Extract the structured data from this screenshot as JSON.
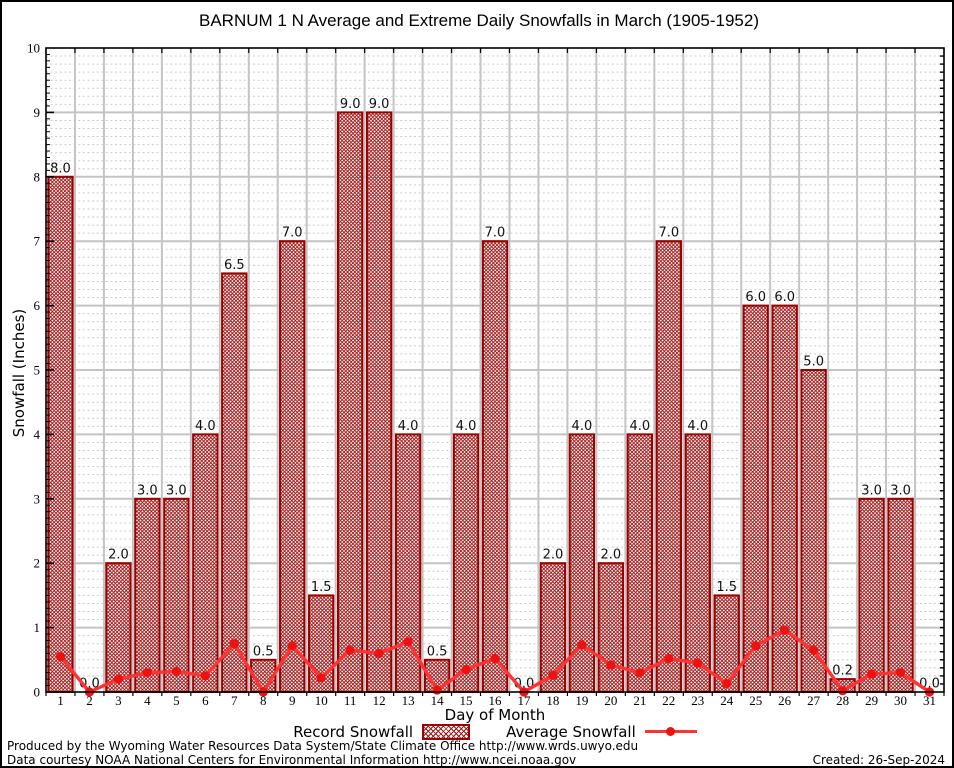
{
  "chart_data": {
    "type": "bar+line",
    "title": "BARNUM 1 N Average and Extreme Daily Snowfalls in March (1905-1952)",
    "xlabel": "Day of Month",
    "ylabel": "Snowfall (Inches)",
    "ylim": [
      0,
      10
    ],
    "y_ticks": [
      0,
      1,
      2,
      3,
      4,
      5,
      6,
      7,
      8,
      9,
      10
    ],
    "categories": [
      1,
      2,
      3,
      4,
      5,
      6,
      7,
      8,
      9,
      10,
      11,
      12,
      13,
      14,
      15,
      16,
      17,
      18,
      19,
      20,
      21,
      22,
      23,
      24,
      25,
      26,
      27,
      28,
      29,
      30,
      31
    ],
    "grid": "major horizontal solid, minor horizontal dashed, vertical solid at day boundaries",
    "legend_position": "bottom",
    "series": [
      {
        "name": "Record Snowfall",
        "type": "bar",
        "values": [
          8.0,
          0.0,
          2.0,
          3.0,
          3.0,
          4.0,
          6.5,
          0.5,
          7.0,
          1.5,
          9.0,
          9.0,
          4.0,
          0.5,
          4.0,
          7.0,
          0.0,
          2.0,
          4.0,
          2.0,
          4.0,
          7.0,
          4.0,
          1.5,
          6.0,
          6.0,
          5.0,
          0.2,
          3.0,
          3.0,
          0.0
        ],
        "bar_labels": [
          "8.0",
          "0.0",
          "2.0",
          "3.0",
          "3.0",
          "4.0",
          "6.5",
          "0.5",
          "7.0",
          "1.5",
          "9.0",
          "9.0",
          "4.0",
          "0.5",
          "4.0",
          "7.0",
          "0.0",
          "2.0",
          "4.0",
          "2.0",
          "4.0",
          "7.0",
          "4.0",
          "1.5",
          "6.0",
          "6.0",
          "5.0",
          "0.2",
          "3.0",
          "3.0",
          "0.0"
        ]
      },
      {
        "name": "Average Snowfall",
        "type": "line",
        "values": [
          0.55,
          0.0,
          0.2,
          0.3,
          0.32,
          0.25,
          0.75,
          0.0,
          0.72,
          0.22,
          0.65,
          0.6,
          0.78,
          0.03,
          0.35,
          0.52,
          0.0,
          0.26,
          0.73,
          0.42,
          0.3,
          0.52,
          0.45,
          0.13,
          0.72,
          0.96,
          0.65,
          0.02,
          0.28,
          0.3,
          0.0
        ]
      }
    ],
    "colors": {
      "bar_outline": "#990000",
      "bar_hatch": "#9b1414",
      "avg_line": "#ff3333",
      "avg_marker": "#ee1111",
      "grid": "#c4c4c4",
      "axis": "#000000"
    }
  },
  "footer": {
    "line1": "Produced by the Wyoming Water Resources Data System/State Climate Office http://www.wrds.uwyo.edu",
    "line2": "Data courtesy NOAA National Centers for Environmental Information http://www.ncei.noaa.gov",
    "created": "Created: 26-Sep-2024"
  }
}
